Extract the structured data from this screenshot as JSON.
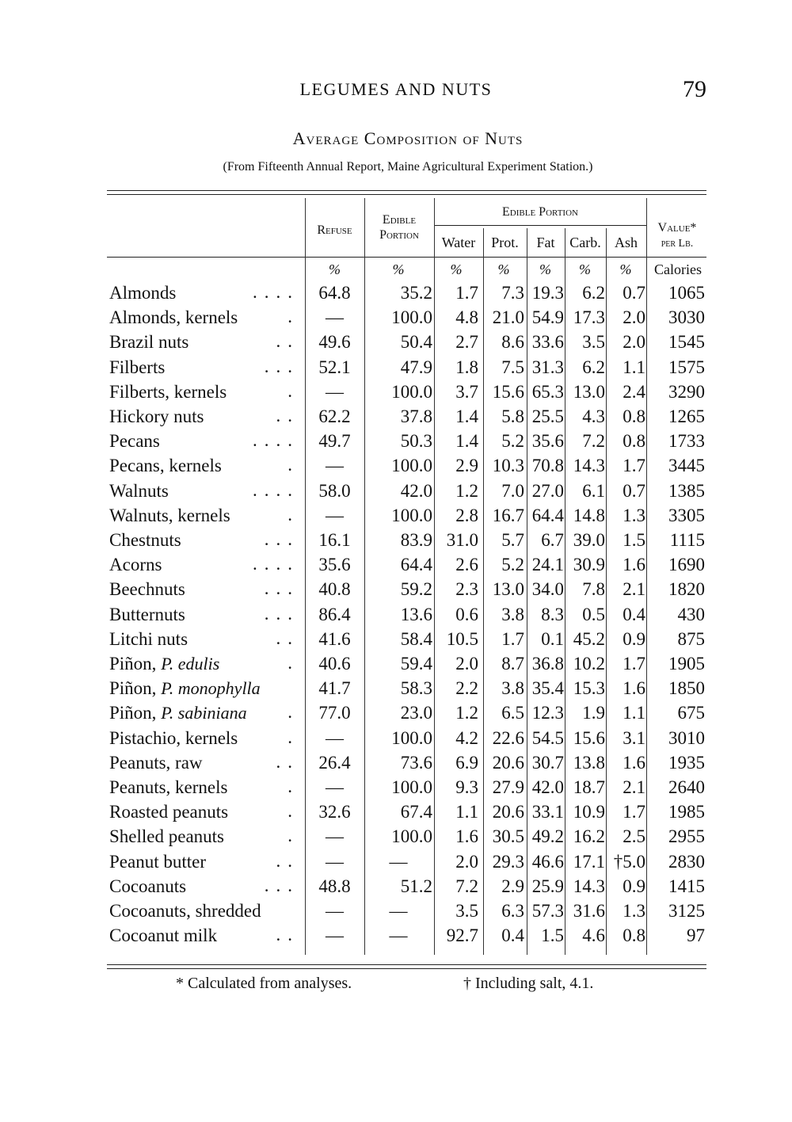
{
  "page": {
    "running_head": "LEGUMES AND NUTS",
    "page_number": "79"
  },
  "table": {
    "title": "Average Composition of Nuts",
    "subtitle": "(From Fifteenth Annual Report, Maine Agricultural Experiment Station.)",
    "headers": {
      "refuse": "Refuse",
      "edible_portion": "Edible Portion",
      "edible_group": "Edible Portion",
      "water": "Water",
      "prot": "Prot.",
      "fat": "Fat",
      "carb": "Carb.",
      "ash": "Ash",
      "value": "Value*",
      "value2": "per Lb."
    },
    "units": [
      "%",
      "%",
      "%",
      "%",
      "%",
      "%",
      "%",
      "Calories"
    ],
    "rows": [
      {
        "name": "Almonds",
        "species": "",
        "values": [
          "64.8",
          "35.2",
          "1.7",
          "7.3",
          "19.3",
          "6.2",
          "0.7",
          "1065"
        ]
      },
      {
        "name": "Almonds, kernels",
        "species": "",
        "values": [
          "—",
          "100.0",
          "4.8",
          "21.0",
          "54.9",
          "17.3",
          "2.0",
          "3030"
        ]
      },
      {
        "name": "Brazil nuts",
        "species": "",
        "values": [
          "49.6",
          "50.4",
          "2.7",
          "8.6",
          "33.6",
          "3.5",
          "2.0",
          "1545"
        ]
      },
      {
        "name": "Filberts",
        "species": "",
        "values": [
          "52.1",
          "47.9",
          "1.8",
          "7.5",
          "31.3",
          "6.2",
          "1.1",
          "1575"
        ]
      },
      {
        "name": "Filberts, kernels",
        "species": "",
        "values": [
          "—",
          "100.0",
          "3.7",
          "15.6",
          "65.3",
          "13.0",
          "2.4",
          "3290"
        ]
      },
      {
        "name": "Hickory nuts",
        "species": "",
        "values": [
          "62.2",
          "37.8",
          "1.4",
          "5.8",
          "25.5",
          "4.3",
          "0.8",
          "1265"
        ]
      },
      {
        "name": "Pecans",
        "species": "",
        "values": [
          "49.7",
          "50.3",
          "1.4",
          "5.2",
          "35.6",
          "7.2",
          "0.8",
          "1733"
        ]
      },
      {
        "name": "Pecans, kernels",
        "species": "",
        "values": [
          "—",
          "100.0",
          "2.9",
          "10.3",
          "70.8",
          "14.3",
          "1.7",
          "3445"
        ]
      },
      {
        "name": "Walnuts",
        "species": "",
        "values": [
          "58.0",
          "42.0",
          "1.2",
          "7.0",
          "27.0",
          "6.1",
          "0.7",
          "1385"
        ]
      },
      {
        "name": "Walnuts, kernels",
        "species": "",
        "values": [
          "—",
          "100.0",
          "2.8",
          "16.7",
          "64.4",
          "14.8",
          "1.3",
          "3305"
        ]
      },
      {
        "name": "Chestnuts",
        "species": "",
        "values": [
          "16.1",
          "83.9",
          "31.0",
          "5.7",
          "6.7",
          "39.0",
          "1.5",
          "1115"
        ]
      },
      {
        "name": "Acorns",
        "species": "",
        "values": [
          "35.6",
          "64.4",
          "2.6",
          "5.2",
          "24.1",
          "30.9",
          "1.6",
          "1690"
        ]
      },
      {
        "name": "Beechnuts",
        "species": "",
        "values": [
          "40.8",
          "59.2",
          "2.3",
          "13.0",
          "34.0",
          "7.8",
          "2.1",
          "1820"
        ]
      },
      {
        "name": "Butternuts",
        "species": "",
        "values": [
          "86.4",
          "13.6",
          "0.6",
          "3.8",
          "8.3",
          "0.5",
          "0.4",
          "430"
        ]
      },
      {
        "name": "Litchi nuts",
        "species": "",
        "values": [
          "41.6",
          "58.4",
          "10.5",
          "1.7",
          "0.1",
          "45.2",
          "0.9",
          "875"
        ]
      },
      {
        "name": "Piñon, ",
        "species": "P. edulis",
        "values": [
          "40.6",
          "59.4",
          "2.0",
          "8.7",
          "36.8",
          "10.2",
          "1.7",
          "1905"
        ]
      },
      {
        "name": "Piñon, ",
        "species": "P. monophylla",
        "values": [
          "41.7",
          "58.3",
          "2.2",
          "3.8",
          "35.4",
          "15.3",
          "1.6",
          "1850"
        ]
      },
      {
        "name": "Piñon, ",
        "species": "P. sabiniana",
        "values": [
          "77.0",
          "23.0",
          "1.2",
          "6.5",
          "12.3",
          "1.9",
          "1.1",
          "675"
        ]
      },
      {
        "name": "Pistachio, kernels",
        "species": "",
        "values": [
          "—",
          "100.0",
          "4.2",
          "22.6",
          "54.5",
          "15.6",
          "3.1",
          "3010"
        ]
      },
      {
        "name": "Peanuts, raw",
        "species": "",
        "values": [
          "26.4",
          "73.6",
          "6.9",
          "20.6",
          "30.7",
          "13.8",
          "1.6",
          "1935"
        ]
      },
      {
        "name": "Peanuts, kernels",
        "species": "",
        "values": [
          "—",
          "100.0",
          "9.3",
          "27.9",
          "42.0",
          "18.7",
          "2.1",
          "2640"
        ]
      },
      {
        "name": "Roasted peanuts",
        "species": "",
        "values": [
          "32.6",
          "67.4",
          "1.1",
          "20.6",
          "33.1",
          "10.9",
          "1.7",
          "1985"
        ]
      },
      {
        "name": "Shelled peanuts",
        "species": "",
        "values": [
          "—",
          "100.0",
          "1.6",
          "30.5",
          "49.2",
          "16.2",
          "2.5",
          "2955"
        ]
      },
      {
        "name": "Peanut butter",
        "species": "",
        "values": [
          "—",
          "—",
          "2.0",
          "29.3",
          "46.6",
          "17.1",
          "†5.0",
          "2830"
        ]
      },
      {
        "name": "Cocoanuts",
        "species": "",
        "values": [
          "48.8",
          "51.2",
          "7.2",
          "2.9",
          "25.9",
          "14.3",
          "0.9",
          "1415"
        ]
      },
      {
        "name": "Cocoanuts, shredded",
        "species": "",
        "values": [
          "—",
          "—",
          "3.5",
          "6.3",
          "57.3",
          "31.6",
          "1.3",
          "3125"
        ]
      },
      {
        "name": "Cocoanut milk",
        "species": "",
        "values": [
          "—",
          "—",
          "92.7",
          "0.4",
          "1.5",
          "4.6",
          "0.8",
          "97"
        ]
      }
    ],
    "footnotes": [
      "* Calculated from analyses.",
      "† Including salt, 4.1."
    ]
  }
}
